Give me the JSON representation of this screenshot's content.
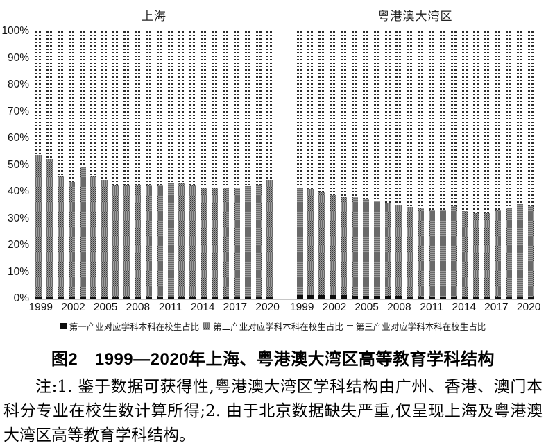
{
  "caption": "图2　1999—2020年上海、粤港澳大湾区高等教育学科结构",
  "note": "注:1. 鉴于数据可获得性,粤港澳大湾区学科结构由广州、香港、澳门本科分专业在校生数计算所得;2. 由于北京数据缺失严重,仅呈现上海及粤港澳大湾区高等教育学科结构。",
  "y_axis": {
    "labels": [
      "100%",
      "90%",
      "80%",
      "70%",
      "60%",
      "50%",
      "40%",
      "30%",
      "20%",
      "10%",
      "0%"
    ]
  },
  "x_axis": {
    "tick_years": [
      "1999",
      "2002",
      "2005",
      "2008",
      "2011",
      "2014",
      "2017",
      "2020"
    ]
  },
  "legend": [
    {
      "label": "第一产业对应学科本科在校生占比",
      "marker": "black-square"
    },
    {
      "label": "第二产业对应学科本科在校生占比",
      "marker": "dot-pattern-square"
    },
    {
      "label": "第三产业对应学科本科在校生占比",
      "marker": "dash"
    }
  ],
  "chart_data": {
    "type": "bar",
    "subtype": "stacked-100-percent",
    "title": "1999—2020年上海、粤港澳大湾区高等教育学科结构",
    "ylim": [
      0,
      100
    ],
    "ytick_step": 10,
    "grid": false,
    "legend_position": "bottom",
    "categories": [
      1999,
      2000,
      2001,
      2002,
      2003,
      2004,
      2005,
      2006,
      2007,
      2008,
      2009,
      2010,
      2011,
      2012,
      2013,
      2014,
      2015,
      2016,
      2017,
      2018,
      2019,
      2020
    ],
    "panels": [
      {
        "title": "上海",
        "series": [
          {
            "name": "第一产业对应学科本科在校生占比",
            "values": [
              0.7,
              0.7,
              0.6,
              0.6,
              0.6,
              0.6,
              0.5,
              0.5,
              0.5,
              0.5,
              0.5,
              0.5,
              0.5,
              0.5,
              0.5,
              0.5,
              0.5,
              0.5,
              0.5,
              0.5,
              0.5,
              0.5
            ]
          },
          {
            "name": "第二产业对应学科本科在校生占比",
            "values": [
              53,
              51.5,
              45.5,
              43,
              48.5,
              45.5,
              44,
              42,
              42,
              41.8,
              42,
              42,
              42.5,
              42.8,
              42,
              41,
              41,
              40.8,
              41,
              41.5,
              41.8,
              44
            ]
          },
          {
            "name": "第三产业对应学科本科在校生占比",
            "values": [
              46.3,
              47.8,
              53.9,
              56.4,
              50.9,
              53.9,
              55.5,
              57.5,
              57.5,
              57.7,
              57.5,
              57.5,
              57,
              56.7,
              57.5,
              58.5,
              58.5,
              58.7,
              58.5,
              58,
              57.7,
              55.5
            ]
          }
        ]
      },
      {
        "title": "粤港澳大湾区",
        "series": [
          {
            "name": "第一产业对应学科本科在校生占比",
            "values": [
              1.3,
              1.3,
              1.2,
              1.2,
              1.2,
              1.1,
              1.1,
              1.0,
              1.0,
              1.0,
              0.9,
              0.9,
              0.8,
              0.8,
              0.8,
              0.8,
              0.8,
              0.8,
              0.7,
              0.7,
              0.7,
              0.7
            ]
          },
          {
            "name": "第二产业对应学科本科在校生占比",
            "values": [
              40,
              39.8,
              38.8,
              37.5,
              37,
              37,
              36.3,
              35.5,
              34.8,
              34,
              33.5,
              33,
              32.5,
              32.5,
              34,
              32,
              31.5,
              31.5,
              32.5,
              33,
              34.5,
              34
            ]
          },
          {
            "name": "第三产业对应学科本科在校生占比",
            "values": [
              58.7,
              58.9,
              60,
              61.3,
              61.8,
              61.9,
              62.6,
              63.5,
              64.2,
              65,
              65.6,
              66.1,
              66.7,
              66.7,
              65.2,
              67.2,
              67.7,
              67.7,
              66.8,
              66.3,
              64.8,
              65.3
            ]
          }
        ]
      }
    ]
  }
}
